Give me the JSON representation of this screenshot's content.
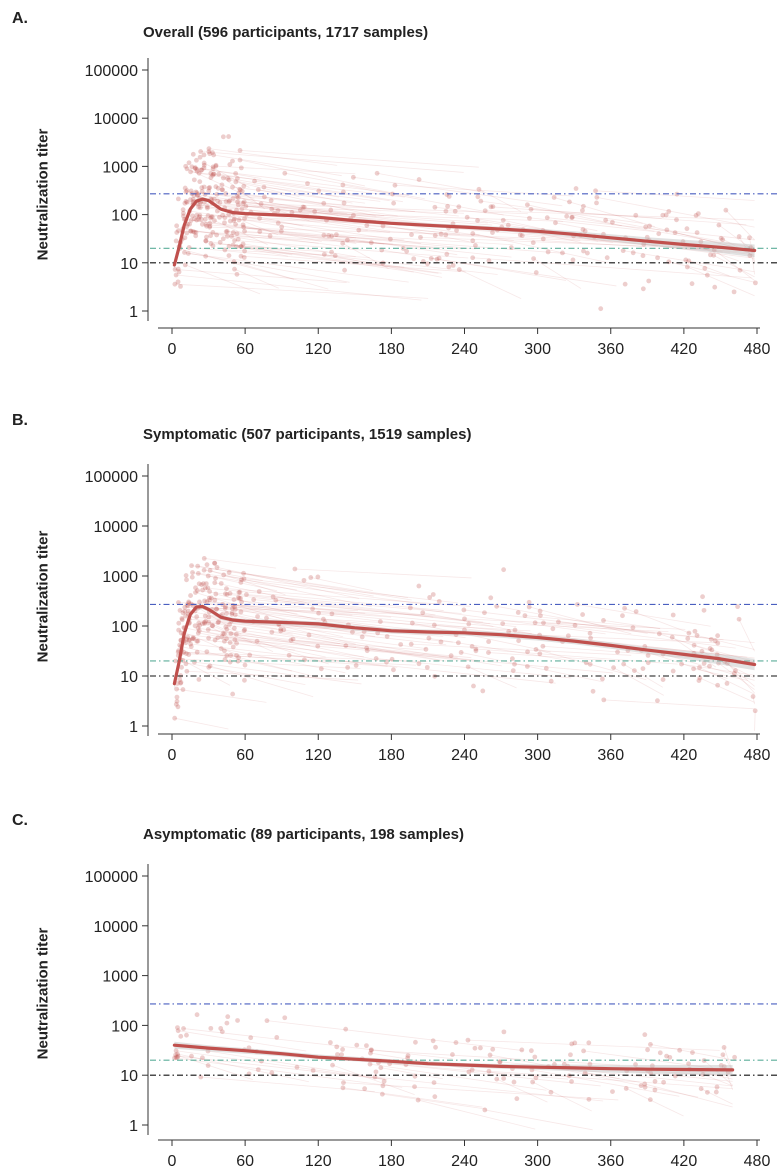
{
  "chart_data": [
    {
      "panel": "A.",
      "type": "scatter",
      "title": "Overall (596 participants, 1717 samples)",
      "ylabel": "Neutralization titer",
      "xlabel": "",
      "x_ticks": [
        0,
        60,
        120,
        180,
        240,
        300,
        360,
        420,
        480
      ],
      "y_ticks": [
        1,
        10,
        100,
        1000,
        10000,
        100000
      ],
      "y_tick_labels": [
        "1",
        "10",
        "100",
        "1000",
        "10000",
        "100000"
      ],
      "yscale": "log",
      "xlim": [
        -20,
        490
      ],
      "ylim": [
        0.6,
        200000
      ],
      "reference_lines": [
        {
          "y": 270,
          "color": "#4a5fc0"
        },
        {
          "y": 20,
          "color": "#5cae9a"
        },
        {
          "y": 10,
          "color": "#111111"
        }
      ],
      "fit_line": {
        "color": "#c0504d",
        "x": [
          2,
          6,
          10,
          15,
          20,
          25,
          30,
          35,
          40,
          50,
          60,
          80,
          100,
          120,
          150,
          180,
          210,
          240,
          270,
          300,
          330,
          360,
          390,
          420,
          450,
          478
        ],
        "y": [
          9,
          22,
          60,
          130,
          190,
          210,
          195,
          160,
          130,
          110,
          105,
          100,
          95,
          88,
          75,
          66,
          60,
          55,
          50,
          45,
          39,
          33,
          28,
          24,
          21,
          18
        ]
      },
      "band": {
        "lower": [
          7,
          18,
          50,
          112,
          170,
          190,
          178,
          146,
          120,
          102,
          98,
          93,
          88,
          81,
          69,
          61,
          55,
          50,
          45,
          40,
          34,
          28,
          23,
          19,
          16,
          13
        ],
        "upper": [
          11,
          26,
          70,
          150,
          212,
          232,
          214,
          176,
          141,
          119,
          113,
          108,
          103,
          96,
          82,
          72,
          66,
          61,
          56,
          51,
          45,
          39,
          34,
          30,
          27,
          24
        ]
      },
      "scatter": {
        "color": "#c0504d",
        "n_points": 420,
        "seed": 11
      }
    },
    {
      "panel": "B.",
      "type": "scatter",
      "title": "Symptomatic (507 participants, 1519 samples)",
      "ylabel": "Neutralization titer",
      "xlabel": "",
      "x_ticks": [
        0,
        60,
        120,
        180,
        240,
        300,
        360,
        420,
        480
      ],
      "y_ticks": [
        1,
        10,
        100,
        1000,
        10000,
        100000
      ],
      "y_tick_labels": [
        "1",
        "10",
        "100",
        "1000",
        "10000",
        "100000"
      ],
      "yscale": "log",
      "xlim": [
        -20,
        490
      ],
      "ylim": [
        0.6,
        200000
      ],
      "reference_lines": [
        {
          "y": 270,
          "color": "#4a5fc0"
        },
        {
          "y": 20,
          "color": "#5cae9a"
        },
        {
          "y": 10,
          "color": "#111111"
        }
      ],
      "fit_line": {
        "color": "#c0504d",
        "x": [
          2,
          6,
          10,
          15,
          20,
          25,
          30,
          35,
          40,
          50,
          60,
          80,
          100,
          120,
          150,
          180,
          210,
          240,
          270,
          300,
          330,
          360,
          390,
          420,
          450,
          478
        ],
        "y": [
          7,
          20,
          70,
          170,
          240,
          245,
          215,
          180,
          150,
          132,
          125,
          120,
          116,
          110,
          92,
          80,
          76,
          73,
          67,
          59,
          50,
          41,
          33,
          27,
          22,
          17
        ]
      },
      "band": {
        "lower": [
          5,
          16,
          58,
          148,
          212,
          218,
          192,
          161,
          134,
          119,
          112,
          107,
          103,
          97,
          81,
          71,
          67,
          64,
          58,
          51,
          43,
          35,
          28,
          22,
          17,
          13
        ],
        "upper": [
          9,
          25,
          82,
          192,
          268,
          272,
          238,
          199,
          166,
          146,
          138,
          133,
          129,
          123,
          103,
          89,
          85,
          82,
          76,
          67,
          57,
          47,
          38,
          32,
          27,
          22
        ]
      },
      "scatter": {
        "color": "#c0504d",
        "n_points": 380,
        "seed": 23
      }
    },
    {
      "panel": "C.",
      "type": "scatter",
      "title": "Asymptomatic (89 participants, 198 samples)",
      "ylabel": "Neutralization titer",
      "xlabel": "",
      "x_ticks": [
        0,
        60,
        120,
        180,
        240,
        300,
        360,
        420,
        480
      ],
      "y_ticks": [
        1,
        10,
        100,
        1000,
        10000,
        100000
      ],
      "y_tick_labels": [
        "1",
        "10",
        "100",
        "1000",
        "10000",
        "100000"
      ],
      "yscale": "log",
      "xlim": [
        -20,
        490
      ],
      "ylim": [
        0.6,
        200000
      ],
      "reference_lines": [
        {
          "y": 270,
          "color": "#4a5fc0"
        },
        {
          "y": 20,
          "color": "#5cae9a"
        },
        {
          "y": 10,
          "color": "#111111"
        }
      ],
      "fit_line": {
        "color": "#c0504d",
        "x": [
          2,
          30,
          60,
          90,
          120,
          150,
          180,
          210,
          240,
          270,
          300,
          330,
          360,
          390,
          420,
          460
        ],
        "y": [
          40,
          35,
          31,
          27,
          23,
          21,
          19,
          17,
          16,
          15,
          14.5,
          14,
          13.5,
          13.2,
          13,
          12.8
        ]
      },
      "band": {
        "lower": [
          34,
          30,
          27,
          24,
          21,
          19,
          17,
          15.5,
          14.5,
          13.5,
          12.8,
          12,
          11.3,
          10.8,
          10.4,
          10
        ],
        "upper": [
          47,
          40,
          35,
          30,
          26,
          23.5,
          21,
          19,
          17.5,
          16.8,
          16.5,
          16.3,
          16.1,
          16,
          16,
          16
        ]
      },
      "scatter": {
        "color": "#c0504d",
        "n_points": 150,
        "seed": 37
      }
    }
  ]
}
